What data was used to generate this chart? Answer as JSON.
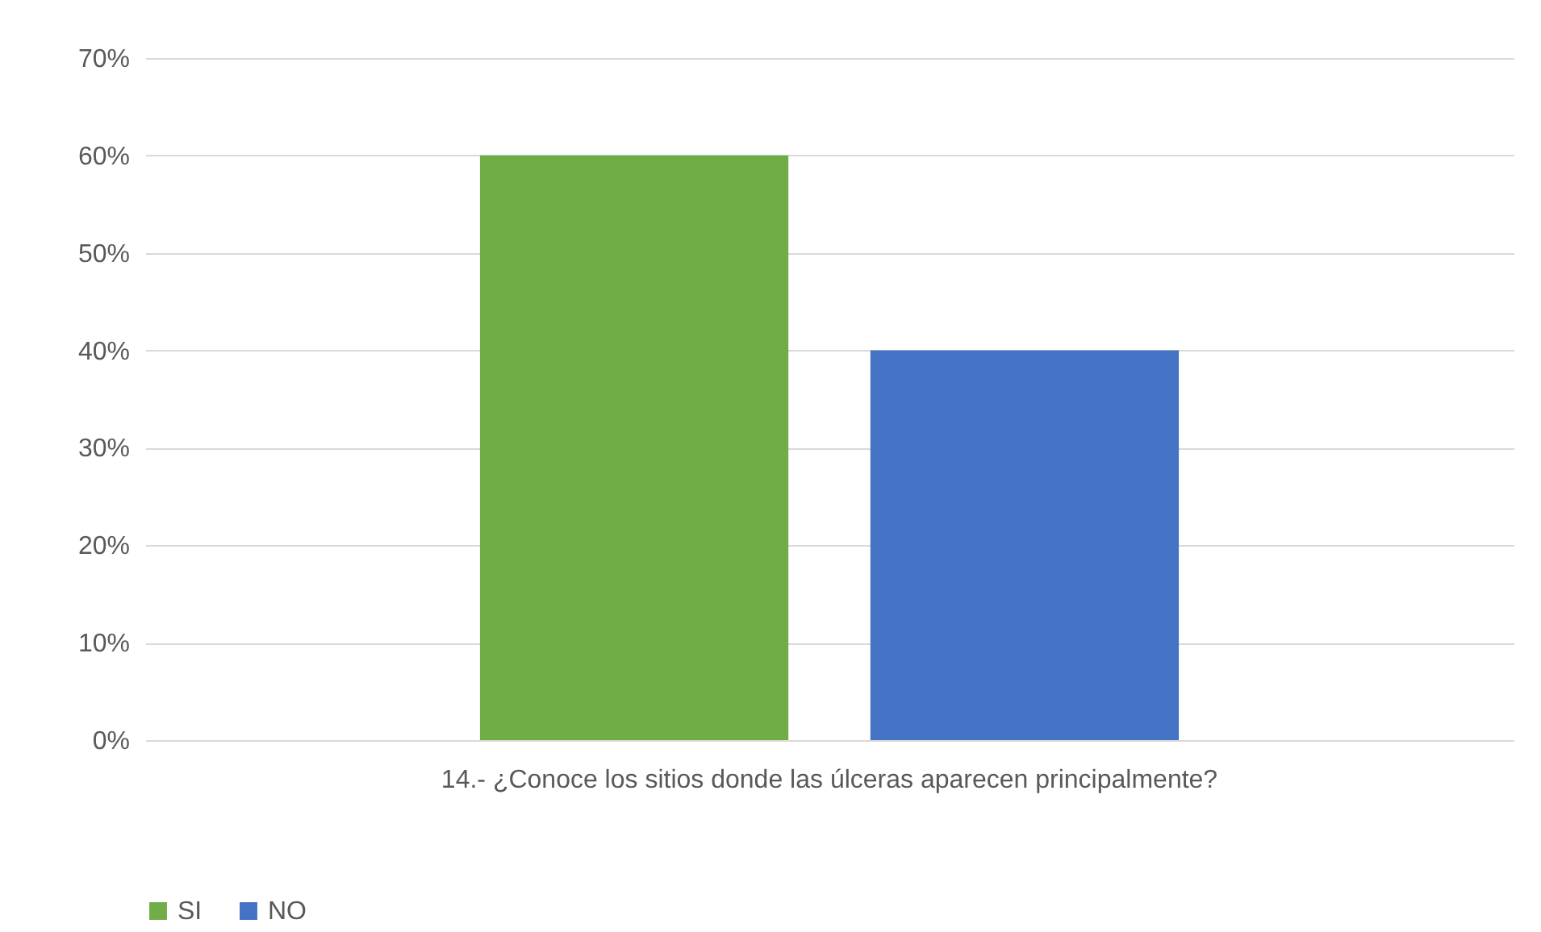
{
  "chart_data": {
    "type": "bar",
    "categories": [
      "14.- ¿Conoce los sitios donde las úlceras aparecen principalmente?"
    ],
    "series": [
      {
        "name": "SI",
        "color": "#70ad47",
        "values": [
          60
        ]
      },
      {
        "name": "NO",
        "color": "#4472c4",
        "values": [
          40
        ]
      }
    ],
    "ylim": [
      0,
      70
    ],
    "yticks": [
      {
        "value": 0,
        "label": "0%"
      },
      {
        "value": 10,
        "label": "10%"
      },
      {
        "value": 20,
        "label": "20%"
      },
      {
        "value": 30,
        "label": "30%"
      },
      {
        "value": 40,
        "label": "40%"
      },
      {
        "value": 50,
        "label": "50%"
      },
      {
        "value": 60,
        "label": "60%"
      },
      {
        "value": 70,
        "label": "70%"
      }
    ],
    "grid": "y",
    "legend": "bottom"
  }
}
